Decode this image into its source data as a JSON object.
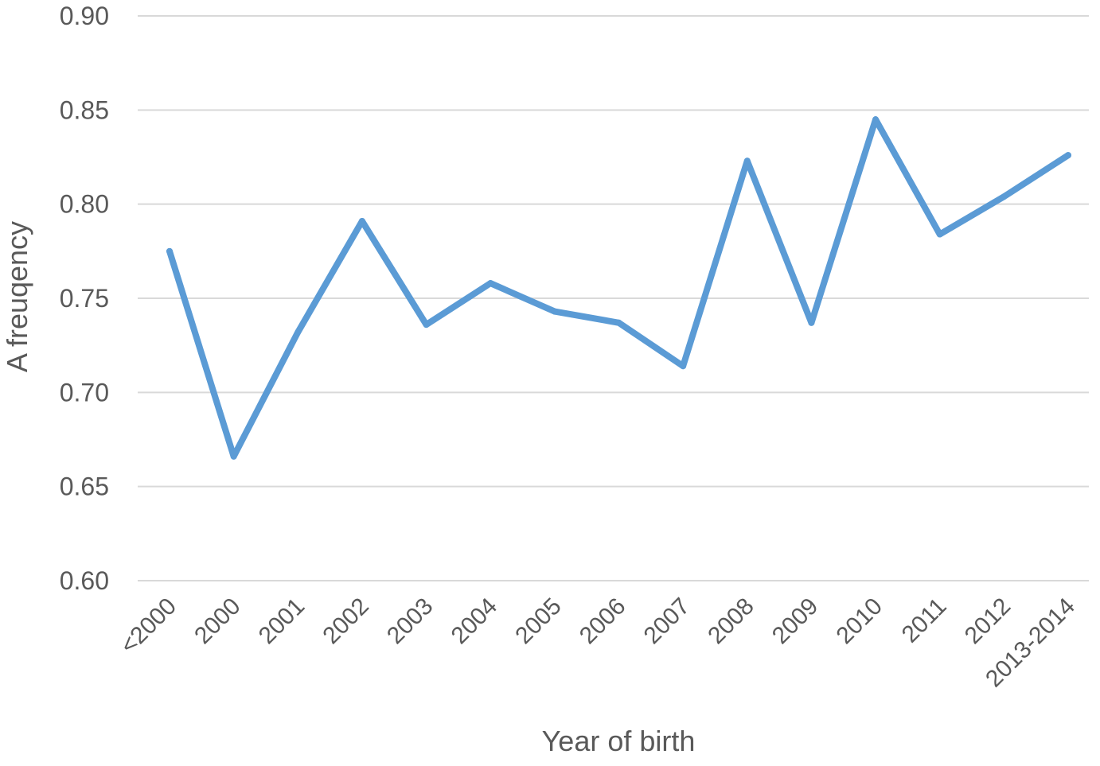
{
  "chart_data": {
    "type": "line",
    "title": "",
    "xlabel": "Year of birth",
    "ylabel": "A freuqency",
    "categories": [
      "<2000",
      "2000",
      "2001",
      "2002",
      "2003",
      "2004",
      "2005",
      "2006",
      "2007",
      "2008",
      "2009",
      "2010",
      "2011",
      "2012",
      "2013-2014"
    ],
    "series": [
      {
        "values": [
          0.775,
          0.666,
          0.732,
          0.791,
          0.736,
          0.758,
          0.743,
          0.737,
          0.714,
          0.823,
          0.737,
          0.845,
          0.784,
          0.804,
          0.826
        ]
      }
    ],
    "ylim": [
      0.6,
      0.9
    ],
    "yticks": [
      "0.60",
      "0.65",
      "0.70",
      "0.75",
      "0.80",
      "0.85",
      "0.90"
    ],
    "grid": true,
    "legend": "none",
    "colors": {
      "line": "#5B9BD5",
      "grid": "#D9D9D9",
      "text": "#595959"
    }
  }
}
